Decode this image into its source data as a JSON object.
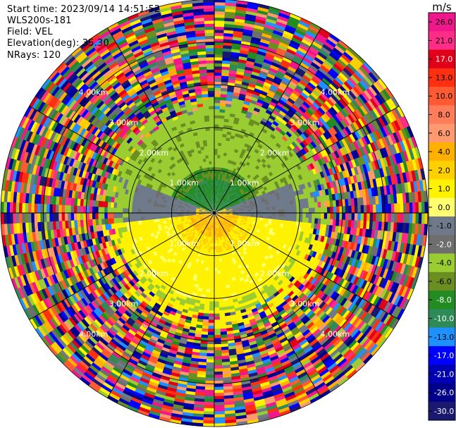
{
  "header": {
    "start_time": "Start time: 2023/09/14 14:51:52",
    "instrument": "WLS200s-181",
    "field": "Field: VEL",
    "elevation": "Elevation(deg): 35.30",
    "nrays": "NRays: 120"
  },
  "colorbar": {
    "unit": "m/s",
    "ticks": [
      "26.0",
      "21.0",
      "17.0",
      "13.0",
      "10.0",
      "8.0",
      "6.0",
      "4.0",
      "2.0",
      "1.0",
      "0.0",
      "-1.0",
      "-2.0",
      "-4.0",
      "-6.0",
      "-8.0",
      "-10.0",
      "-13.0",
      "-17.0",
      "-21.0",
      "-26.0",
      "-30.0"
    ],
    "colors": [
      "#f0168c",
      "#ff2d87",
      "#e0001a",
      "#ff3010",
      "#ff5a32",
      "#ff7d5a",
      "#ff9a70",
      "#ffb000",
      "#ffd000",
      "#fff200",
      "#ffff70",
      "#6e7a8a",
      "#6e6e6e",
      "#9acd32",
      "#6b8e23",
      "#228b22",
      "#2e8b57",
      "#1e90ff",
      "#0000ff",
      "#0000b4",
      "#00008b",
      "#191970"
    ]
  },
  "chart_data": {
    "type": "ppi",
    "field": "VEL",
    "units": "m/s",
    "rays": 120,
    "elevation_deg": 35.3,
    "range_rings": [
      {
        "km": 1.0,
        "label": "1.00km"
      },
      {
        "km": 2.0,
        "label": "2.00km"
      },
      {
        "km": 3.0,
        "label": "3.00km"
      },
      {
        "km": 4.0,
        "label": "4.00km"
      }
    ],
    "max_range_km": 5.0,
    "spokes_deg": [
      0,
      30,
      60,
      90,
      120,
      150,
      180,
      210,
      240,
      270,
      300,
      330
    ],
    "velocity_regions": [
      {
        "sector": "north, inner 0-1.0 km",
        "velocity": "-6 to -8",
        "color": "green"
      },
      {
        "sector": "north, 1.0-2.5 km",
        "velocity": "-2 to -4",
        "color": "olive"
      },
      {
        "sector": "east/west, 0.5-1.8 km",
        "velocity": "0 to -1",
        "color": "gray"
      },
      {
        "sector": "south, 0-0.6 km",
        "velocity": "4 to 8",
        "color": "orange"
      },
      {
        "sector": "south, 0.5-2.2 km",
        "velocity": "1 to 2",
        "color": "yellow"
      },
      {
        "sector": "all, beyond 2.6 km",
        "velocity": "noise",
        "color": "mixed"
      }
    ]
  }
}
